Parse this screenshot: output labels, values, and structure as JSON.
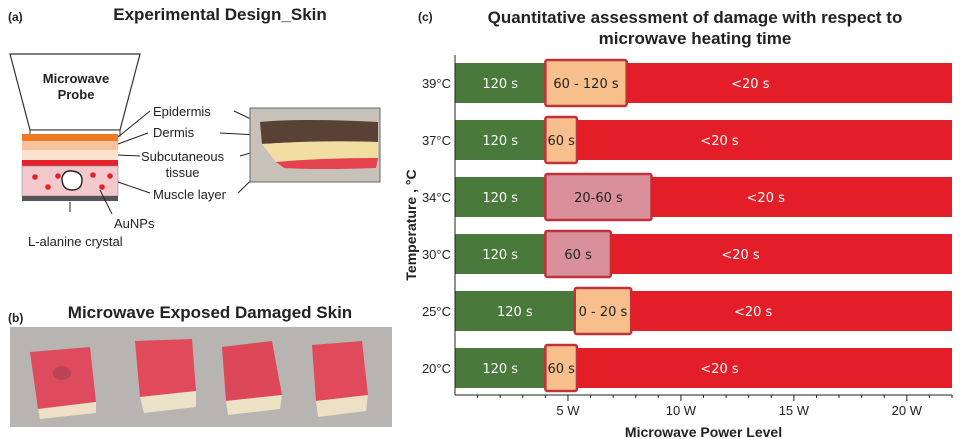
{
  "panel_a": {
    "tag": "(a)",
    "title": "Experimental Design_Skin",
    "probe_label": "Microwave\nProbe",
    "layers": [
      "Epidermis",
      "Dermis",
      "Subcutaneous\ntissue",
      "Muscle layer"
    ],
    "aunps_label": "AuNPs",
    "crystal_label": "L-alanine crystal"
  },
  "panel_b": {
    "tag": "(b)",
    "title": "Microwave Exposed Damaged Skin"
  },
  "panel_c": {
    "tag": "(c)",
    "title_line1": "Quantitative assessment of damage with respect to",
    "title_line2": "microwave heating time"
  },
  "colors": {
    "green": "#4a7a3b",
    "orange": "#f6bf8c",
    "pink": "#d9909a",
    "red": "#e41e28",
    "border": "#c0323a"
  },
  "chart_data": {
    "type": "bar",
    "orientation": "horizontal-stacked",
    "xlabel": "Microwave Power Level",
    "ylabel": "Temperature , °C",
    "xticks": [
      "5 W",
      "10 W",
      "15 W",
      "20 W"
    ],
    "xtick_values": [
      5,
      10,
      15,
      20
    ],
    "xlim": [
      0,
      22
    ],
    "rows": [
      {
        "temp": "39°C",
        "segments": [
          {
            "label": "120 s",
            "from": 0,
            "to": 4.0,
            "color": "green"
          },
          {
            "label": "60 - 120 s",
            "from": 4.0,
            "to": 7.6,
            "color": "orange"
          },
          {
            "label": "<20 s",
            "from": 7.6,
            "to": 22,
            "color": "red"
          }
        ]
      },
      {
        "temp": "37°C",
        "segments": [
          {
            "label": "120 s",
            "from": 0,
            "to": 4.0,
            "color": "green"
          },
          {
            "label": "60 s",
            "from": 4.0,
            "to": 5.4,
            "color": "orange"
          },
          {
            "label": "<20 s",
            "from": 5.4,
            "to": 22,
            "color": "red"
          }
        ]
      },
      {
        "temp": "34°C",
        "segments": [
          {
            "label": "120 s",
            "from": 0,
            "to": 4.0,
            "color": "green"
          },
          {
            "label": "20-60 s",
            "from": 4.0,
            "to": 8.7,
            "color": "pink"
          },
          {
            "label": "<20 s",
            "from": 8.7,
            "to": 22,
            "color": "red"
          }
        ]
      },
      {
        "temp": "30°C",
        "segments": [
          {
            "label": "120 s",
            "from": 0,
            "to": 4.0,
            "color": "green"
          },
          {
            "label": "60 s",
            "from": 4.0,
            "to": 6.9,
            "color": "pink"
          },
          {
            "label": "<20 s",
            "from": 6.9,
            "to": 22,
            "color": "red"
          }
        ]
      },
      {
        "temp": "25°C",
        "segments": [
          {
            "label": "120 s",
            "from": 0,
            "to": 5.3,
            "color": "green"
          },
          {
            "label": "0 - 20 s",
            "from": 5.3,
            "to": 7.8,
            "color": "orange"
          },
          {
            "label": "<20 s",
            "from": 7.8,
            "to": 22,
            "color": "red"
          }
        ]
      },
      {
        "temp": "20°C",
        "segments": [
          {
            "label": "120 s",
            "from": 0,
            "to": 4.0,
            "color": "green"
          },
          {
            "label": "60 s",
            "from": 4.0,
            "to": 5.4,
            "color": "orange"
          },
          {
            "label": "<20 s",
            "from": 5.4,
            "to": 22,
            "color": "red"
          }
        ]
      }
    ]
  }
}
